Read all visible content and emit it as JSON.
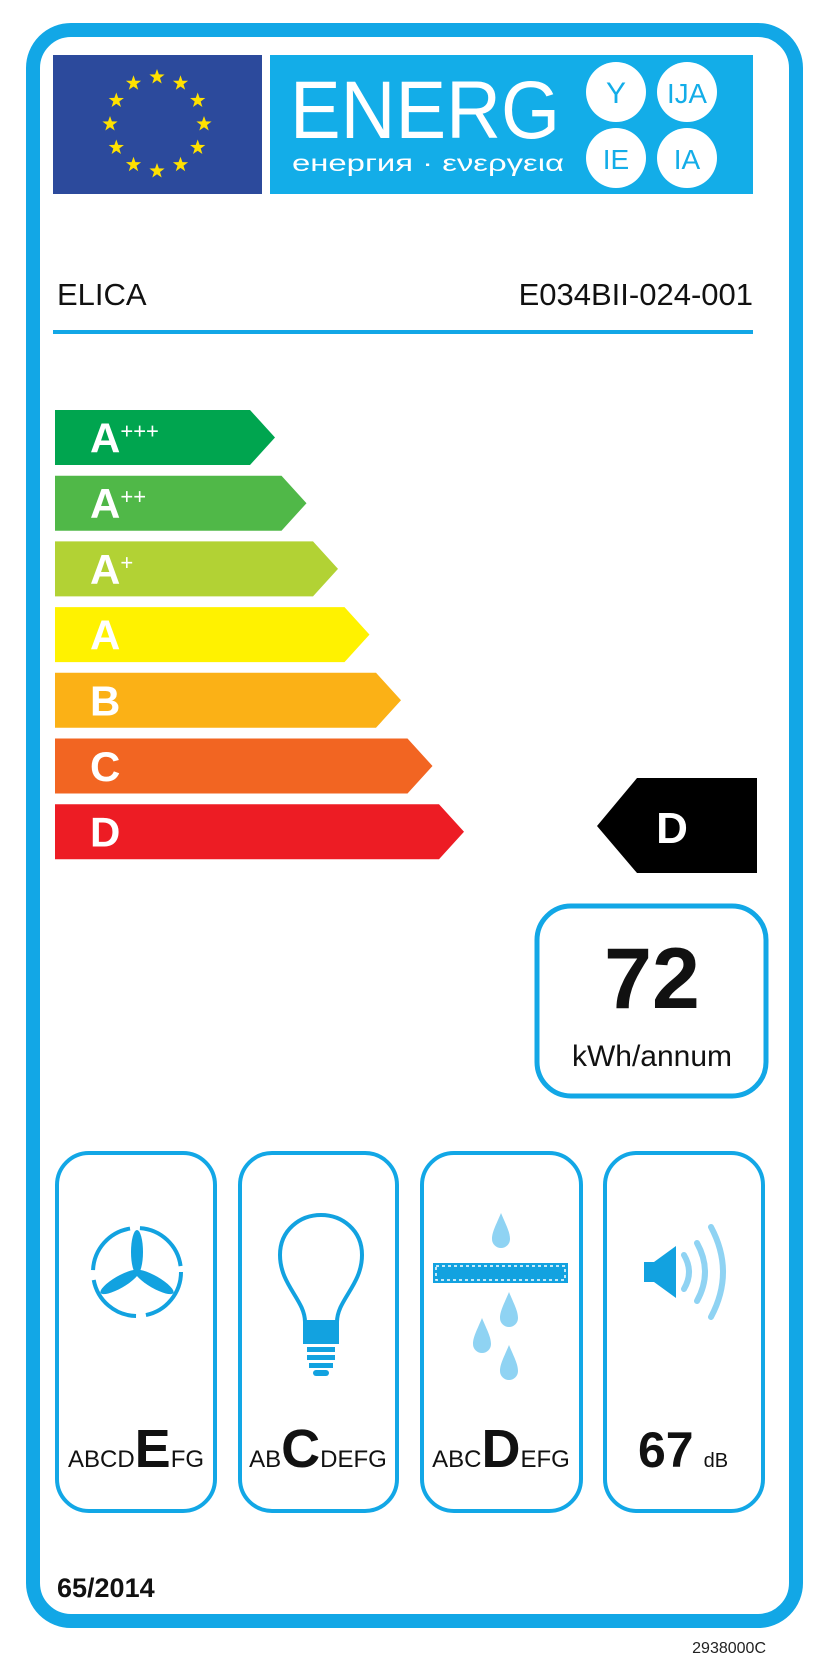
{
  "colors": {
    "frame": "#12a7e6",
    "eu_blue": "#2c4a9c",
    "eu_star": "#ffe100",
    "banner": "#13ade8",
    "icon_dark": "#12a2e0",
    "icon_light": "#8fd3f3",
    "pointer": "#000000"
  },
  "header": {
    "logo_icon": "eu-flag-icon",
    "energy_word": "ENERG",
    "energy_subtitle": "енергия · ενεργεια",
    "suffixes": [
      "Y",
      "IJA",
      "IE",
      "IA"
    ]
  },
  "supplier": "ELICA",
  "model": "E034BII-024-001",
  "scale": [
    {
      "label": "A",
      "plus": "+++",
      "color": "#00a54f"
    },
    {
      "label": "A",
      "plus": "++",
      "color": "#50b848"
    },
    {
      "label": "A",
      "plus": "+",
      "color": "#b2d234"
    },
    {
      "label": "A",
      "plus": "",
      "color": "#fff200"
    },
    {
      "label": "B",
      "plus": "",
      "color": "#fbb116"
    },
    {
      "label": "C",
      "plus": "",
      "color": "#f26522"
    },
    {
      "label": "D",
      "plus": "",
      "color": "#ed1c24"
    }
  ],
  "rating": {
    "class": "D"
  },
  "consumption": {
    "value": "72",
    "unit": "kWh/annum"
  },
  "pictograms": [
    {
      "icon": "fan-icon",
      "before": "ABCD",
      "class": "E",
      "after": "FG"
    },
    {
      "icon": "light-bulb-icon",
      "before": "AB",
      "class": "C",
      "after": "DEFG"
    },
    {
      "icon": "grease-filter-icon",
      "before": "ABC",
      "class": "D",
      "after": "EFG"
    },
    {
      "icon": "speaker-noise-icon",
      "value": "67",
      "unit": "dB"
    }
  ],
  "regulation": "65/2014",
  "label_code": "2938000C"
}
